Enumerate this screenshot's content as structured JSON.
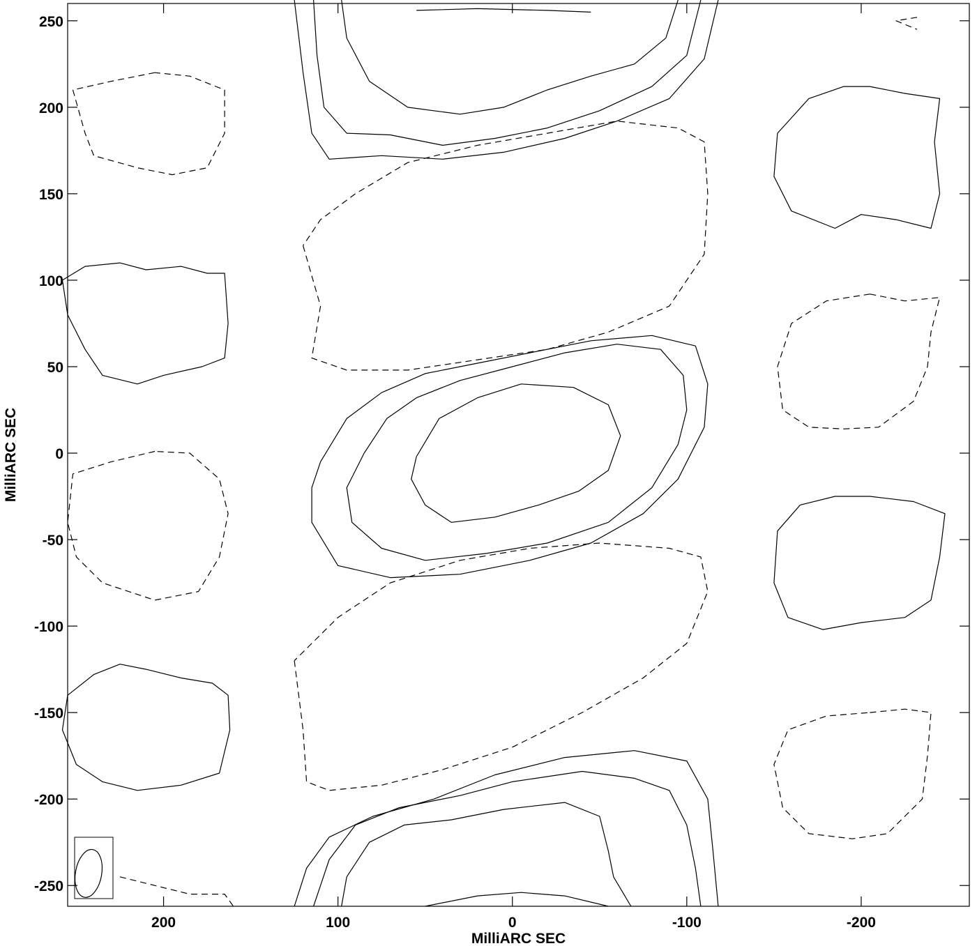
{
  "chart_data": {
    "type": "contour",
    "title": "",
    "xlabel": "MilliARC SEC",
    "ylabel": "MilliARC SEC",
    "xlim": [
      255,
      -262
    ],
    "ylim": [
      -262,
      260
    ],
    "x_ticks": [
      200,
      100,
      0,
      -100,
      -200
    ],
    "x_tick_labels": [
      "200",
      "100",
      "0",
      "-100",
      "-200"
    ],
    "y_ticks": [
      250,
      200,
      150,
      100,
      50,
      0,
      -50,
      -100,
      -150,
      -200,
      -250
    ],
    "y_tick_labels": [
      "250",
      "200",
      "150",
      "100",
      "50",
      "0",
      "-50",
      "-100",
      "-150",
      "-200",
      "-250"
    ],
    "grid": false,
    "beam": {
      "x": 243,
      "y": -243,
      "major": 28,
      "minor": 15,
      "pa_deg": 10
    },
    "contours": [
      {
        "sign": "positive",
        "points": [
          [
            55,
            -2
          ],
          [
            42,
            20
          ],
          [
            20,
            32
          ],
          [
            -5,
            40
          ],
          [
            -35,
            38
          ],
          [
            -55,
            28
          ],
          [
            -62,
            10
          ],
          [
            -55,
            -10
          ],
          [
            -38,
            -22
          ],
          [
            -15,
            -30
          ],
          [
            10,
            -37
          ],
          [
            35,
            -40
          ],
          [
            50,
            -30
          ],
          [
            58,
            -15
          ],
          [
            55,
            -2
          ]
        ]
      },
      {
        "sign": "positive",
        "points": [
          [
            85,
            0
          ],
          [
            72,
            20
          ],
          [
            55,
            32
          ],
          [
            30,
            42
          ],
          [
            0,
            50
          ],
          [
            -30,
            58
          ],
          [
            -60,
            63
          ],
          [
            -85,
            60
          ],
          [
            -98,
            45
          ],
          [
            -100,
            25
          ],
          [
            -95,
            5
          ],
          [
            -80,
            -20
          ],
          [
            -55,
            -40
          ],
          [
            -20,
            -52
          ],
          [
            15,
            -58
          ],
          [
            50,
            -62
          ],
          [
            75,
            -55
          ],
          [
            92,
            -40
          ],
          [
            95,
            -20
          ],
          [
            85,
            0
          ]
        ]
      },
      {
        "sign": "positive",
        "points": [
          [
            110,
            -5
          ],
          [
            95,
            20
          ],
          [
            75,
            35
          ],
          [
            50,
            46
          ],
          [
            20,
            52
          ],
          [
            -10,
            58
          ],
          [
            -45,
            65
          ],
          [
            -80,
            68
          ],
          [
            -105,
            62
          ],
          [
            -112,
            40
          ],
          [
            -110,
            15
          ],
          [
            -95,
            -15
          ],
          [
            -75,
            -35
          ],
          [
            -45,
            -52
          ],
          [
            -10,
            -62
          ],
          [
            30,
            -70
          ],
          [
            70,
            -72
          ],
          [
            100,
            -65
          ],
          [
            115,
            -40
          ],
          [
            115,
            -20
          ],
          [
            110,
            -5
          ]
        ]
      },
      {
        "sign": "positive",
        "points": [
          [
            98,
            262
          ],
          [
            95,
            240
          ],
          [
            82,
            215
          ],
          [
            60,
            200
          ],
          [
            30,
            196
          ],
          [
            5,
            200
          ],
          [
            -20,
            210
          ],
          [
            -45,
            218
          ],
          [
            -70,
            225
          ],
          [
            -88,
            240
          ],
          [
            -95,
            262
          ]
        ]
      },
      {
        "sign": "positive",
        "points": [
          [
            114,
            262
          ],
          [
            112,
            230
          ],
          [
            108,
            200
          ],
          [
            95,
            185
          ],
          [
            70,
            184
          ],
          [
            40,
            178
          ],
          [
            10,
            182
          ],
          [
            -20,
            188
          ],
          [
            -50,
            198
          ],
          [
            -80,
            212
          ],
          [
            -100,
            230
          ],
          [
            -108,
            262
          ]
        ]
      },
      {
        "sign": "positive",
        "points": [
          [
            125,
            262
          ],
          [
            120,
            220
          ],
          [
            115,
            185
          ],
          [
            105,
            170
          ],
          [
            75,
            172
          ],
          [
            40,
            170
          ],
          [
            5,
            174
          ],
          [
            -30,
            182
          ],
          [
            -60,
            192
          ],
          [
            -90,
            205
          ],
          [
            -110,
            228
          ],
          [
            -118,
            262
          ]
        ]
      },
      {
        "sign": "positive",
        "points": [
          [
            98,
            -262
          ],
          [
            95,
            -245
          ],
          [
            82,
            -225
          ],
          [
            62,
            -215
          ],
          [
            35,
            -212
          ],
          [
            5,
            -206
          ],
          [
            -30,
            -202
          ],
          [
            -50,
            -210
          ],
          [
            -55,
            -230
          ],
          [
            -58,
            -245
          ],
          [
            -68,
            -262
          ]
        ]
      },
      {
        "sign": "positive",
        "points": [
          [
            114,
            -262
          ],
          [
            105,
            -235
          ],
          [
            90,
            -215
          ],
          [
            65,
            -205
          ],
          [
            30,
            -198
          ],
          [
            0,
            -190
          ],
          [
            -40,
            -184
          ],
          [
            -70,
            -188
          ],
          [
            -90,
            -195
          ],
          [
            -100,
            -215
          ],
          [
            -105,
            -240
          ],
          [
            -108,
            -262
          ]
        ]
      },
      {
        "sign": "positive",
        "points": [
          [
            125,
            -262
          ],
          [
            118,
            -240
          ],
          [
            105,
            -222
          ],
          [
            80,
            -210
          ],
          [
            45,
            -200
          ],
          [
            10,
            -186
          ],
          [
            -30,
            -176
          ],
          [
            -70,
            -172
          ],
          [
            -100,
            -178
          ],
          [
            -112,
            -200
          ],
          [
            -115,
            -230
          ],
          [
            -118,
            -262
          ]
        ]
      },
      {
        "sign": "positive",
        "points": [
          [
            50,
            -262
          ],
          [
            20,
            -256
          ],
          [
            -5,
            -254
          ],
          [
            -30,
            -256
          ],
          [
            -55,
            -262
          ]
        ]
      },
      {
        "sign": "positive",
        "points": [
          [
            55,
            256
          ],
          [
            20,
            257
          ],
          [
            -20,
            256
          ],
          [
            -45,
            255
          ]
        ]
      },
      {
        "sign": "positive",
        "points": [
          [
            -205,
            212
          ],
          [
            -225,
            208
          ],
          [
            -245,
            205
          ],
          [
            -242,
            180
          ],
          [
            -245,
            150
          ],
          [
            -240,
            130
          ],
          [
            -220,
            135
          ],
          [
            -200,
            138
          ],
          [
            -185,
            130
          ],
          [
            -160,
            140
          ],
          [
            -150,
            160
          ],
          [
            -152,
            185
          ],
          [
            -170,
            205
          ],
          [
            -190,
            212
          ],
          [
            -205,
            212
          ]
        ]
      },
      {
        "sign": "positive",
        "points": [
          [
            -205,
            -25
          ],
          [
            -230,
            -28
          ],
          [
            -248,
            -35
          ],
          [
            -245,
            -60
          ],
          [
            -240,
            -85
          ],
          [
            -225,
            -95
          ],
          [
            -200,
            -98
          ],
          [
            -178,
            -102
          ],
          [
            -158,
            -95
          ],
          [
            -150,
            -75
          ],
          [
            -152,
            -45
          ],
          [
            -165,
            -30
          ],
          [
            -185,
            -25
          ],
          [
            -205,
            -25
          ]
        ]
      },
      {
        "sign": "positive",
        "points": [
          [
            225,
            110
          ],
          [
            210,
            106
          ],
          [
            190,
            108
          ],
          [
            175,
            104
          ],
          [
            165,
            104
          ],
          [
            163,
            75
          ],
          [
            165,
            55
          ],
          [
            178,
            50
          ],
          [
            200,
            45
          ],
          [
            215,
            40
          ],
          [
            235,
            45
          ],
          [
            245,
            60
          ],
          [
            255,
            80
          ],
          [
            258,
            100
          ],
          [
            245,
            108
          ],
          [
            225,
            110
          ]
        ]
      },
      {
        "sign": "positive",
        "points": [
          [
            225,
            -122
          ],
          [
            210,
            -125
          ],
          [
            190,
            -130
          ],
          [
            172,
            -133
          ],
          [
            163,
            -140
          ],
          [
            162,
            -160
          ],
          [
            168,
            -185
          ],
          [
            190,
            -192
          ],
          [
            215,
            -195
          ],
          [
            235,
            -190
          ],
          [
            250,
            -180
          ],
          [
            258,
            -160
          ],
          [
            255,
            -140
          ],
          [
            240,
            -128
          ],
          [
            225,
            -122
          ]
        ]
      },
      {
        "sign": "negative",
        "points": [
          [
            120,
            120
          ],
          [
            110,
            85
          ],
          [
            115,
            55
          ],
          [
            95,
            48
          ],
          [
            60,
            48
          ],
          [
            20,
            54
          ],
          [
            -20,
            60
          ],
          [
            -55,
            70
          ],
          [
            -90,
            85
          ],
          [
            -110,
            115
          ],
          [
            -112,
            150
          ],
          [
            -110,
            180
          ],
          [
            -95,
            188
          ],
          [
            -60,
            192
          ],
          [
            -20,
            185
          ],
          [
            20,
            178
          ],
          [
            60,
            168
          ],
          [
            90,
            150
          ],
          [
            110,
            135
          ],
          [
            120,
            120
          ]
        ]
      },
      {
        "sign": "negative",
        "points": [
          [
            125,
            -120
          ],
          [
            120,
            -160
          ],
          [
            118,
            -190
          ],
          [
            105,
            -195
          ],
          [
            75,
            -192
          ],
          [
            40,
            -183
          ],
          [
            0,
            -170
          ],
          [
            -40,
            -150
          ],
          [
            -75,
            -130
          ],
          [
            -100,
            -110
          ],
          [
            -112,
            -80
          ],
          [
            -108,
            -60
          ],
          [
            -90,
            -55
          ],
          [
            -50,
            -52
          ],
          [
            -10,
            -55
          ],
          [
            30,
            -62
          ],
          [
            70,
            -75
          ],
          [
            100,
            -95
          ],
          [
            125,
            -120
          ]
        ]
      },
      {
        "sign": "negative",
        "points": [
          [
            205,
            1
          ],
          [
            230,
            -5
          ],
          [
            252,
            -12
          ],
          [
            255,
            -40
          ],
          [
            250,
            -60
          ],
          [
            235,
            -75
          ],
          [
            205,
            -85
          ],
          [
            180,
            -80
          ],
          [
            168,
            -60
          ],
          [
            163,
            -35
          ],
          [
            168,
            -15
          ],
          [
            185,
            0
          ],
          [
            205,
            1
          ]
        ]
      },
      {
        "sign": "negative",
        "points": [
          [
            205,
            220
          ],
          [
            230,
            215
          ],
          [
            252,
            210
          ],
          [
            245,
            185
          ],
          [
            240,
            172
          ],
          [
            215,
            165
          ],
          [
            195,
            161
          ],
          [
            175,
            165
          ],
          [
            165,
            185
          ],
          [
            165,
            210
          ],
          [
            185,
            218
          ],
          [
            205,
            220
          ]
        ]
      },
      {
        "sign": "negative",
        "points": [
          [
            -205,
            92
          ],
          [
            -225,
            88
          ],
          [
            -245,
            90
          ],
          [
            -240,
            70
          ],
          [
            -238,
            50
          ],
          [
            -230,
            30
          ],
          [
            -210,
            15
          ],
          [
            -190,
            14
          ],
          [
            -170,
            15
          ],
          [
            -155,
            25
          ],
          [
            -152,
            50
          ],
          [
            -160,
            75
          ],
          [
            -180,
            88
          ],
          [
            -205,
            92
          ]
        ]
      },
      {
        "sign": "negative",
        "points": [
          [
            -205,
            -150
          ],
          [
            -225,
            -148
          ],
          [
            -240,
            -150
          ],
          [
            -238,
            -175
          ],
          [
            -235,
            -200
          ],
          [
            -215,
            -220
          ],
          [
            -195,
            -223
          ],
          [
            -170,
            -220
          ],
          [
            -155,
            -205
          ],
          [
            -150,
            -180
          ],
          [
            -158,
            -160
          ],
          [
            -180,
            -152
          ],
          [
            -205,
            -150
          ]
        ]
      },
      {
        "sign": "negative",
        "points": [
          [
            225,
            -245
          ],
          [
            205,
            -250
          ],
          [
            185,
            -255
          ],
          [
            165,
            -255
          ],
          [
            160,
            -262
          ]
        ]
      },
      {
        "sign": "negative",
        "points": [
          [
            -232,
            252
          ],
          [
            -220,
            250
          ],
          [
            -232,
            245
          ]
        ]
      }
    ]
  }
}
